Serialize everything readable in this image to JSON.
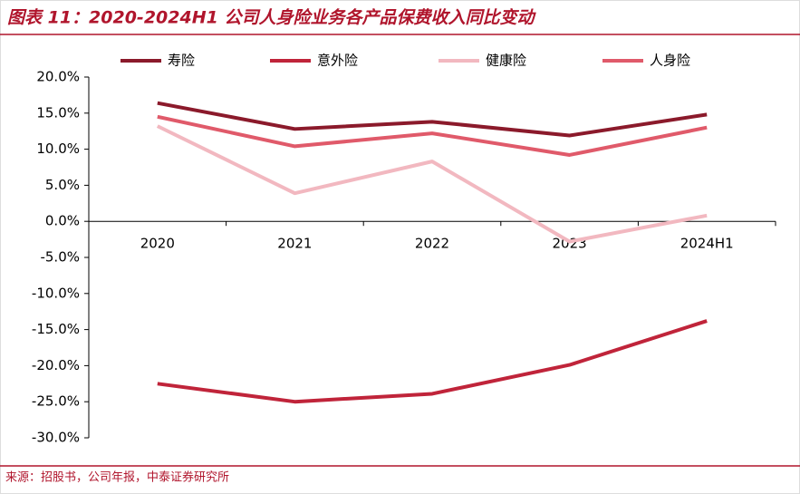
{
  "chart_data": {
    "type": "line",
    "title": "图表 11：2020-2024H1 公司人身险业务各产品保费收入同比变动",
    "source": "来源：招股书，公司年报，中泰证券研究所",
    "categories": [
      "2020",
      "2021",
      "2022",
      "2023",
      "2024H1"
    ],
    "series": [
      {
        "name": "寿险",
        "color": "#8b1a2b",
        "values": [
          16.4,
          12.8,
          13.8,
          11.9,
          14.8
        ]
      },
      {
        "name": "意外险",
        "color": "#c0243a",
        "values": [
          -22.5,
          -25.0,
          -23.9,
          -19.9,
          -13.8
        ]
      },
      {
        "name": "健康险",
        "color": "#f2b8c0",
        "values": [
          13.2,
          3.9,
          8.3,
          -2.8,
          0.8
        ]
      },
      {
        "name": "人身险",
        "color": "#e05a6a",
        "values": [
          14.5,
          10.4,
          12.2,
          9.2,
          13.0
        ]
      }
    ],
    "ylim": [
      -30,
      20
    ],
    "yticks": [
      {
        "value": 20,
        "label": "20.0%"
      },
      {
        "value": 15,
        "label": "15.0%"
      },
      {
        "value": 10,
        "label": "10.0%"
      },
      {
        "value": 5,
        "label": "5.0%"
      },
      {
        "value": 0,
        "label": "0.0%"
      },
      {
        "value": -5,
        "label": "-5.0%"
      },
      {
        "value": -10,
        "label": "-10.0%"
      },
      {
        "value": -15,
        "label": "-15.0%"
      },
      {
        "value": -20,
        "label": "-20.0%"
      },
      {
        "value": -25,
        "label": "-25.0%"
      },
      {
        "value": -30,
        "label": "-30.0%"
      }
    ]
  }
}
